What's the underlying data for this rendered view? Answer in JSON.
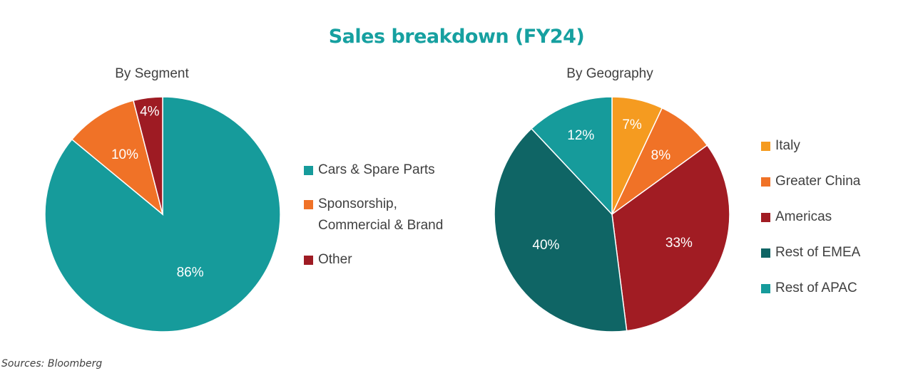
{
  "title": "Sales breakdown (FY24)",
  "source": "Sources: Bloomberg",
  "chart_data": [
    {
      "type": "pie",
      "title": "By Segment",
      "categories": [
        "Cars & Spare Parts",
        "Sponsorship, Commercial & Brand",
        "Other"
      ],
      "legend_lines": [
        [
          "Cars & Spare Parts"
        ],
        [
          "Sponsorship,",
          "Commercial & Brand"
        ],
        [
          "Other"
        ]
      ],
      "values": [
        86,
        10,
        4
      ],
      "labels": [
        "86%",
        "10%",
        "4%"
      ],
      "colors": [
        "#169b9b",
        "#f07227",
        "#9e1b23"
      ],
      "legend": "right"
    },
    {
      "type": "pie",
      "title": "By Geography",
      "categories": [
        "Italy",
        "Greater China",
        "Americas",
        "Rest of EMEA",
        "Rest of APAC"
      ],
      "legend_lines": [
        [
          "Italy"
        ],
        [
          "Greater China"
        ],
        [
          "Americas"
        ],
        [
          "Rest of EMEA"
        ],
        [
          "Rest of APAC"
        ]
      ],
      "values": [
        7,
        8,
        33,
        40,
        12
      ],
      "labels": [
        "7%",
        "8%",
        "33%",
        "40%",
        "12%"
      ],
      "colors": [
        "#f59b20",
        "#f07227",
        "#a11c23",
        "#0f6565",
        "#169b9b"
      ],
      "legend": "right"
    }
  ]
}
